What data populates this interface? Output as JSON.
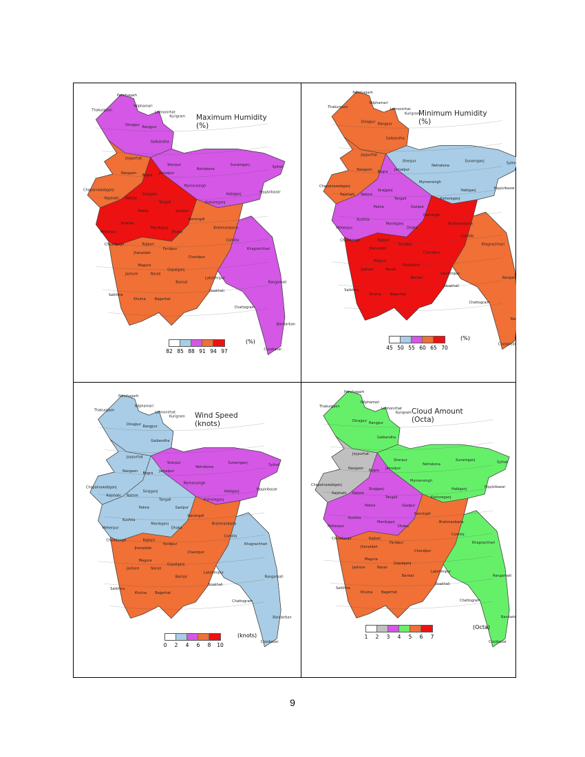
{
  "panels": [
    {
      "title_line1": "Maximum Humidity",
      "title_line2": "(%)",
      "legend_unit": "(%)",
      "legend_ticks": [
        "82",
        "85",
        "88",
        "91",
        "94",
        "97"
      ],
      "legend_colors": [
        "#ffffff",
        "#a9cde6",
        "#d457e6",
        "#f07036",
        "#ee1111"
      ],
      "region_colors": [
        "#d457e6",
        "#f07036",
        "#d457e6",
        "#ee1111",
        "#f07036"
      ],
      "places": [
        "Panchagarh",
        "Thakurgaon",
        "Nilphamari",
        "Lalmonirhat",
        "Kurigram",
        "Dinajpur",
        "Rangpur",
        "Gaibandha",
        "Joypurhat",
        "Naogaon",
        "Bogra",
        "Sherpur",
        "Jamalpur",
        "Sunamganj",
        "Sylhet",
        "Netrakona",
        "Chapainawabganj",
        "Rajshahi",
        "Natore",
        "Sirajganj",
        "Tangail",
        "Mymensingh",
        "Habiganj",
        "Moulvibazar",
        "Kishoreganj",
        "Pabna",
        "Gazipur",
        "Narsingdi",
        "Meherpur",
        "Kushtia",
        "Manikganj",
        "Dhaka",
        "Chuadanga",
        "Rajbari",
        "Faridpur",
        "Brahmanbaria",
        "Jhenaidah",
        "Magura",
        "Comilla",
        "Jashore",
        "Narail",
        "Gopalganj",
        "Chandpur",
        "Khagrachhari",
        "Satkhira",
        "Khulna",
        "Bagerhat",
        "Barisal",
        "Lakshmipur",
        "Noakhali",
        "Rangamati",
        "Chattogram",
        "Bandarban",
        "Coxsbazar"
      ]
    },
    {
      "title_line1": "Minimum Humidity",
      "title_line2": "(%)",
      "legend_unit": "(%)",
      "legend_ticks": [
        "45",
        "50",
        "55",
        "60",
        "65",
        "70"
      ],
      "legend_colors": [
        "#ffffff",
        "#a9cde6",
        "#d457e6",
        "#f07036",
        "#ee1111"
      ],
      "region_colors": [
        "#f07036",
        "#f07036",
        "#a9cde6",
        "#d457e6",
        "#ee1111"
      ],
      "places": [
        "Panchagarh",
        "Thakurgaon",
        "Nilphamari",
        "Lalmonirhat",
        "Kurigram",
        "Dinajpur",
        "Rangpur",
        "Gaibandha",
        "Joypurhat",
        "Naogaon",
        "Bogra",
        "Sherpur",
        "Jamalpur",
        "Sunamganj",
        "Sylhet",
        "Netrakona",
        "Chapainawabganj",
        "Rajshahi",
        "Natore",
        "Sirajganj",
        "Tangail",
        "Mymensingh",
        "Habiganj",
        "Moulvibazar",
        "Kishoreganj",
        "Pabna",
        "Gazipur",
        "Narsingdi",
        "Meherpur",
        "Kushtia",
        "Manikganj",
        "Dhaka",
        "Chuadanga",
        "Rajbari",
        "Faridpur",
        "Brahmanbaria",
        "Jhenaidah",
        "Magura",
        "Comilla",
        "Jashore",
        "Narail",
        "Gopalganj",
        "Chandpur",
        "Khagrachhari",
        "Satkhira",
        "Khulna",
        "Bagerhat",
        "Barisal",
        "Lakshmipur",
        "Noakhali",
        "Rangamati",
        "Chattogram",
        "Bandarban",
        "Coxsbazar"
      ]
    },
    {
      "title_line1": "Wind Speed",
      "title_line2": "(knots)",
      "legend_unit": "(knots)",
      "legend_ticks": [
        "0",
        "2",
        "4",
        "6",
        "8",
        "10"
      ],
      "legend_colors": [
        "#ffffff",
        "#a9cde6",
        "#d457e6",
        "#f07036",
        "#ee1111"
      ],
      "region_colors": [
        "#a9cde6",
        "#a9cde6",
        "#d457e6",
        "#a9cde6",
        "#f07036"
      ],
      "places": [
        "Panchagarh",
        "Thakurgaon",
        "Nilphamari",
        "Lalmonirhat",
        "Kurigram",
        "Dinajpur",
        "Rangpur",
        "Gaibandha",
        "Joypurhat",
        "Naogaon",
        "Bogra",
        "Sherpur",
        "Jamalpur",
        "Sunamganj",
        "Sylhet",
        "Netrakona",
        "Chapainawabganj",
        "Rajshahi",
        "Natore",
        "Sirajganj",
        "Tangail",
        "Mymensingh",
        "Habiganj",
        "Moulvibazar",
        "Kishoreganj",
        "Pabna",
        "Gazipur",
        "Narsingdi",
        "Meherpur",
        "Kushtia",
        "Manikganj",
        "Dhaka",
        "Chuadanga",
        "Rajbari",
        "Faridpur",
        "Brahmanbaria",
        "Jhenaidah",
        "Magura",
        "Comilla",
        "Jashore",
        "Narail",
        "Gopalganj",
        "Chandpur",
        "Khagrachhari",
        "Satkhira",
        "Khulna",
        "Bagerhat",
        "Barisal",
        "Lakshmipur",
        "Noakhali",
        "Rangamati",
        "Chattogram",
        "Bandarban",
        "Coxsbazar"
      ]
    },
    {
      "title_line1": "Cloud Amount",
      "title_line2": "(Octa)",
      "legend_unit": "(Octa)",
      "legend_ticks": [
        "1",
        "2",
        "3",
        "4",
        "5",
        "6",
        "7"
      ],
      "legend_colors": [
        "#ffffff",
        "#c0c0c0",
        "#d457e6",
        "#66f06a",
        "#f07036",
        "#ee1111"
      ],
      "region_colors": [
        "#66f06a",
        "#c0c0c0",
        "#66f06a",
        "#d457e6",
        "#f07036"
      ],
      "places": [
        "Panchagarh",
        "Thakurgaon",
        "Nilphamari",
        "Lalmonirhat",
        "Kurigram",
        "Dinajpur",
        "Rangpur",
        "Gaibandha",
        "Joypurhat",
        "Naogaon",
        "Bogra",
        "Sherpur",
        "Jamalpur",
        "Sunamganj",
        "Sylhet",
        "Netrakona",
        "Chapainawabganj",
        "Rajshahi",
        "Natore",
        "Sirajganj",
        "Tangail",
        "Mymensingh",
        "Habiganj",
        "Moulvibazar",
        "Kishoreganj",
        "Pabna",
        "Gazipur",
        "Narsingdi",
        "Meherpur",
        "Kushtia",
        "Manikganj",
        "Dhaka",
        "Chuadanga",
        "Rajbari",
        "Faridpur",
        "Brahmanbaria",
        "Jhenaidah",
        "Magura",
        "Comilla",
        "Jashore",
        "Narail",
        "Gopalganj",
        "Chandpur",
        "Khagrachhari",
        "Satkhira",
        "Khulna",
        "Bagerhat",
        "Barisal",
        "Lakshmipur",
        "Noakhali",
        "Rangamati",
        "Chattogram",
        "Bandarban",
        "Coxsbazar"
      ]
    }
  ],
  "page_number": "9"
}
